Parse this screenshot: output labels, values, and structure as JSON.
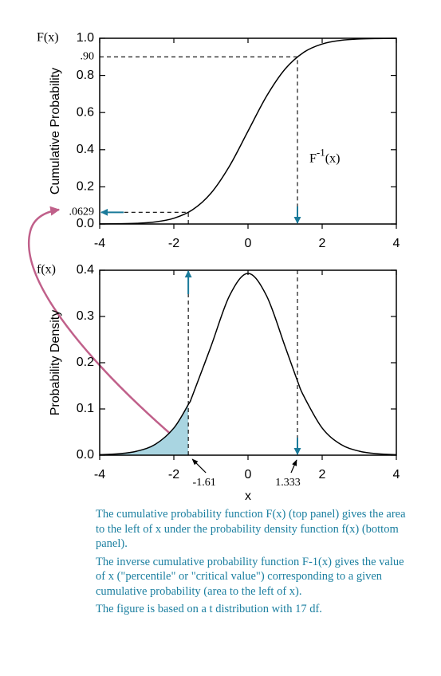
{
  "chart_data": [
    {
      "type": "line",
      "corner_label": "F(x)",
      "ylabel": "Cumulative Probability",
      "x": [
        -4,
        -3.5,
        -3,
        -2.5,
        -2,
        -1.5,
        -1,
        -0.5,
        0,
        0.5,
        1,
        1.5,
        2,
        2.5,
        3,
        3.5,
        4
      ],
      "values": [
        0.0005,
        0.0014,
        0.004,
        0.0114,
        0.0308,
        0.076,
        0.1657,
        0.3118,
        0.5,
        0.6882,
        0.8343,
        0.924,
        0.9692,
        0.9886,
        0.996,
        0.9986,
        0.9995
      ],
      "color": "#000000",
      "xlim": [
        -4,
        4
      ],
      "xticks": [
        -4,
        -2,
        0,
        2,
        4
      ],
      "ylim": [
        0,
        1
      ],
      "yticks": [
        {
          "value": 0,
          "label": "0.0"
        },
        {
          "value": 0.2,
          "label": "0.2"
        },
        {
          "value": 0.4,
          "label": "0.4"
        },
        {
          "value": 0.6,
          "label": "0.6"
        },
        {
          "value": 0.8,
          "label": "0.8"
        },
        {
          "value": 1,
          "label": "1.0"
        }
      ],
      "quantiles": [
        {
          "x": -1.61,
          "p": {
            "value": 0.0629,
            "label": ".0629"
          }
        },
        {
          "x": 1.333,
          "p": {
            "value": 0.9,
            "label": ".90"
          }
        }
      ],
      "inverse_label": {
        "base": "F",
        "sup": "-1",
        "arg": "(x)"
      },
      "arrow_color": "#1a7a9a"
    },
    {
      "type": "line",
      "corner_label": "f(x)",
      "ylabel": "Probability Density",
      "xlabel": "x",
      "x": [
        -4,
        -3.5,
        -3,
        -2.5,
        -2,
        -1.61,
        -1.5,
        -1,
        -0.5,
        0,
        0.5,
        1,
        1.333,
        1.5,
        2,
        2.5,
        3,
        3.5,
        4
      ],
      "values": [
        0.001,
        0.003,
        0.0086,
        0.0235,
        0.0587,
        0.1096,
        0.1284,
        0.235,
        0.3447,
        0.3931,
        0.3447,
        0.235,
        0.1607,
        0.1284,
        0.0587,
        0.0235,
        0.0086,
        0.003,
        0.001
      ],
      "color": "#000000",
      "shade_color": "#a9d5e1",
      "xlim": [
        -4,
        4
      ],
      "xticks": [
        -4,
        -2,
        0,
        2,
        4
      ],
      "ylim": [
        0,
        0.4
      ],
      "yticks": [
        {
          "value": 0,
          "label": "0.0"
        },
        {
          "value": 0.1,
          "label": "0.1"
        },
        {
          "value": 0.2,
          "label": "0.2"
        },
        {
          "value": 0.3,
          "label": "0.3"
        },
        {
          "value": 0.4,
          "label": "0.4"
        }
      ],
      "arrow_color": "#1a7a9a"
    }
  ],
  "caption": [
    "The cumulative probability function F(x) (top panel) gives the area to the left of x under the probability density function f(x) (bottom panel).",
    "The inverse cumulative probability function F-1(x) gives the value of x (\"percentile\" or \"critical value\") corresponding to a given cumulative probability (area to the left of x).",
    "The figure is based on a t distribution with 17 df."
  ]
}
